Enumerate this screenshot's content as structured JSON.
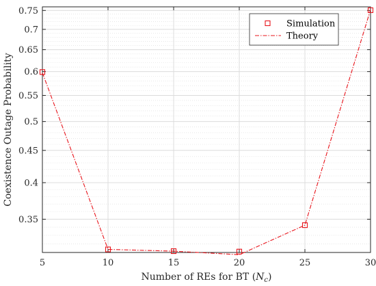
{
  "chart_data": {
    "type": "line",
    "xlabel": "Number of REs for BT (",
    "xlabel_symbol": "N",
    "xlabel_subscript": "c",
    "xlabel_suffix": ")",
    "ylabel": "Coexistence Outage Probability",
    "xlim": [
      5,
      30
    ],
    "ylim": [
      0.31,
      0.76
    ],
    "y_scale": "log",
    "x_ticks": [
      "5",
      "10",
      "15",
      "20",
      "25",
      "30"
    ],
    "y_ticks": [
      "0.35",
      "0.4",
      "0.45",
      "0.5",
      "0.55",
      "0.6",
      "0.65",
      "0.7",
      "0.75"
    ],
    "grid": true,
    "legend_position": "top-right",
    "series": [
      {
        "name": "Simulation",
        "style": "markers",
        "marker": "square",
        "color": "#e8141b",
        "x": [
          5,
          10,
          15,
          20,
          25,
          30
        ],
        "y": [
          0.599,
          0.3135,
          0.3115,
          0.311,
          0.3425,
          0.7507
        ]
      },
      {
        "name": "Theory",
        "style": "dash-dot",
        "color": "#e8141b",
        "x": [
          5,
          10,
          15,
          20,
          25,
          30
        ],
        "y": [
          0.5975,
          0.3135,
          0.3115,
          0.3075,
          0.3425,
          0.7522
        ]
      }
    ]
  }
}
